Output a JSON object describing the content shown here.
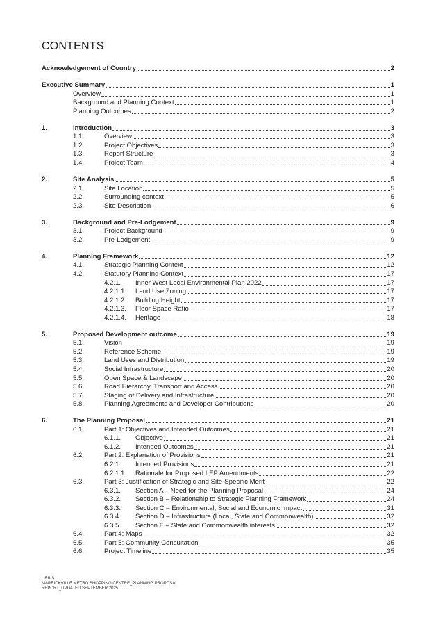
{
  "header": {
    "title": "CONTENTS"
  },
  "contents": {
    "sections": [
      {
        "title": "Acknowledgement of Country",
        "page": 2,
        "items": []
      },
      {
        "title": "Executive Summary",
        "page": 1,
        "items": [
          {
            "title": "Overview",
            "page": 1
          },
          {
            "title": "Background and Planning Context",
            "page": 1
          },
          {
            "title": "Planning Outcomes",
            "page": 2
          }
        ]
      },
      {
        "number": "1.",
        "title": "Introduction",
        "page": 3,
        "items": [
          {
            "number": "1.1.",
            "title": "Overview",
            "page": 3
          },
          {
            "number": "1.2.",
            "title": "Project Objectives",
            "page": 3
          },
          {
            "number": "1.3.",
            "title": "Report Structure",
            "page": 3
          },
          {
            "number": "1.4.",
            "title": "Project Team",
            "page": 4
          }
        ]
      },
      {
        "number": "2.",
        "title": "Site Analysis",
        "page": 5,
        "items": [
          {
            "number": "2.1.",
            "title": "Site Location",
            "page": 5
          },
          {
            "number": "2.2.",
            "title": "Surrounding context",
            "page": 5
          },
          {
            "number": "2.3.",
            "title": "Site Description",
            "page": 6
          }
        ]
      },
      {
        "number": "3.",
        "title": "Background and Pre-Lodgement",
        "page": 9,
        "items": [
          {
            "number": "3.1.",
            "title": "Project Background",
            "page": 9
          },
          {
            "number": "3.2.",
            "title": "Pre-Lodgement",
            "page": 9
          }
        ]
      },
      {
        "number": "4.",
        "title": "Planning Framework",
        "page": 12,
        "items": [
          {
            "number": "4.1.",
            "title": "Strategic Planning Context",
            "page": 12
          },
          {
            "number": "4.2.",
            "title": "Statutory Planning Context",
            "page": 17
          },
          {
            "number": "4.2.1.",
            "title": "Inner West Local Environmental Plan 2022",
            "page": 17
          },
          {
            "number": "4.2.1.1.",
            "title": "Land Use Zoning",
            "page": 17
          },
          {
            "number": "4.2.1.2.",
            "title": "Building Height",
            "page": 17
          },
          {
            "number": "4.2.1.3.",
            "title": "Floor Space Ratio",
            "page": 17
          },
          {
            "number": "4.2.1.4.",
            "title": "Heritage",
            "page": 18
          }
        ]
      },
      {
        "number": "5.",
        "title": "Proposed Development outcome",
        "page": 19,
        "items": [
          {
            "number": "5.1.",
            "title": "Vision",
            "page": 19
          },
          {
            "number": "5.2.",
            "title": "Reference Scheme",
            "page": 19
          },
          {
            "number": "5.3.",
            "title": "Land Uses and Distribution",
            "page": 19
          },
          {
            "number": "5.4.",
            "title": "Social Infrastructure",
            "page": 20
          },
          {
            "number": "5.5.",
            "title": "Open Space & Landscape",
            "page": 20
          },
          {
            "number": "5.6.",
            "title": "Road Hierarchy, Transport and Access",
            "page": 20
          },
          {
            "number": "5.7.",
            "title": "Staging of Delivery and Infrastructure",
            "page": 20
          },
          {
            "number": "5.8.",
            "title": "Planning Agreements and Developer Contributions",
            "page": 20
          }
        ]
      },
      {
        "number": "6.",
        "title": "The Planning Proposal",
        "page": 21,
        "items": [
          {
            "number": "6.1.",
            "title": "Part 1: Objectives and Intended Outcomes",
            "page": 21
          },
          {
            "number": "6.1.1.",
            "title": "Objective",
            "page": 21
          },
          {
            "number": "6.1.2.",
            "title": "Intended Outcomes",
            "page": 21
          },
          {
            "number": "6.2.",
            "title": "Part 2: Explanation of Provisions",
            "page": 21
          },
          {
            "number": "6.2.1.",
            "title": "Intended Provisions",
            "page": 21
          },
          {
            "number": "6.2.1.1.",
            "title": "Rationale for Proposed LEP Amendments",
            "page": 22
          },
          {
            "number": "6.3.",
            "title": "Part 3: Justification of Strategic and Site-Specific Merit",
            "page": 22
          },
          {
            "number": "6.3.1.",
            "title": "Section A – Need for the Planning Proposal",
            "page": 24
          },
          {
            "number": "6.3.2.",
            "title": "Section B – Relationship to Strategic Planning Framework",
            "page": 24
          },
          {
            "number": "6.3.3.",
            "title": "Section C – Environmental, Social and Economic Impact",
            "page": 31
          },
          {
            "number": "6.3.4.",
            "title": "Section D – Infrastructure (Local, State and Commonwealth)",
            "page": 32
          },
          {
            "number": "6.3.5.",
            "title": "Section E – State and Commonwealth interests",
            "page": 32
          },
          {
            "number": "6.4.",
            "title": "Part 4: Maps",
            "page": 32
          },
          {
            "number": "6.5.",
            "title": "Part 5: Community Consultation",
            "page": 35
          },
          {
            "number": "6.6.",
            "title": "Project Timeline",
            "page": 35
          }
        ]
      }
    ]
  },
  "footer": {
    "lines": [
      "URBIS",
      "MARRICKVILLE METRO SHOPPING CENTRE_PLANNING PROPOSAL",
      "REPORT_UPDATED SEPTEMBER 2025"
    ]
  }
}
